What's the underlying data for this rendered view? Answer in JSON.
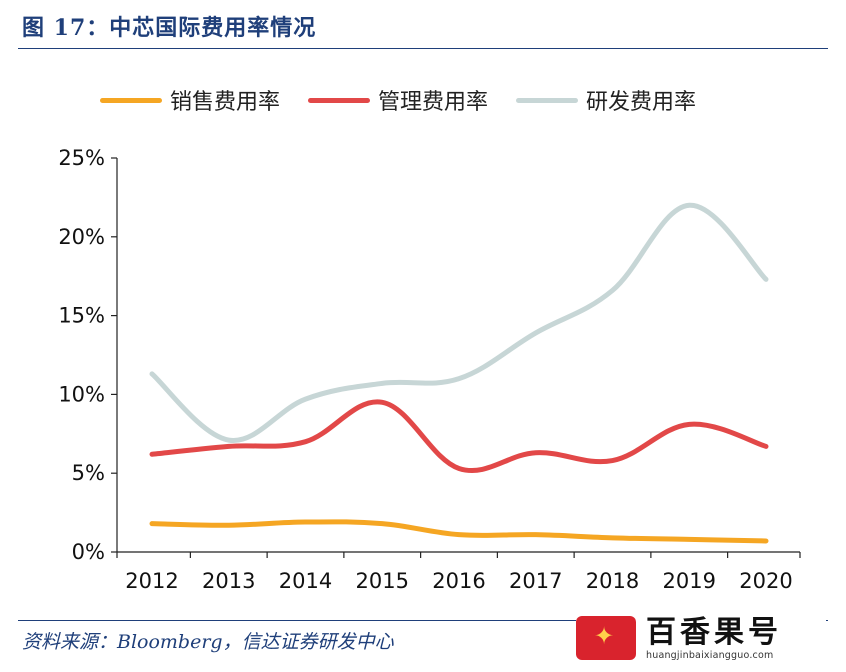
{
  "title": "图 17：中芯国际费用率情况",
  "source": "资料来源：Bloomberg，信达证券研发中心",
  "watermark": {
    "name": "百香果号",
    "url": "huangjinbaixiangguo.com"
  },
  "colors": {
    "selling": "#f5a623",
    "admin": "#e24848",
    "rnd": "#c7d6d6",
    "brand": "#1f3f7a"
  },
  "chart_data": {
    "type": "line",
    "title": "",
    "xlabel": "",
    "ylabel": "",
    "categories": [
      "2012",
      "2013",
      "2014",
      "2015",
      "2016",
      "2017",
      "2018",
      "2019",
      "2020"
    ],
    "y_ticks": [
      "0%",
      "5%",
      "10%",
      "15%",
      "20%",
      "25%"
    ],
    "ylim": [
      0,
      25
    ],
    "legend_position": "top",
    "grid": false,
    "series": [
      {
        "name": "销售费用率",
        "color": "#f5a623",
        "values": [
          1.8,
          1.7,
          1.9,
          1.8,
          1.1,
          1.1,
          0.9,
          0.8,
          0.7
        ]
      },
      {
        "name": "管理费用率",
        "color": "#e24848",
        "values": [
          6.2,
          6.7,
          7.0,
          9.5,
          5.3,
          6.3,
          5.8,
          8.1,
          6.7
        ]
      },
      {
        "name": "研发费用率",
        "color": "#c7d6d6",
        "values": [
          11.3,
          7.1,
          9.7,
          10.7,
          11.0,
          13.9,
          16.6,
          22.0,
          17.3
        ]
      }
    ]
  }
}
